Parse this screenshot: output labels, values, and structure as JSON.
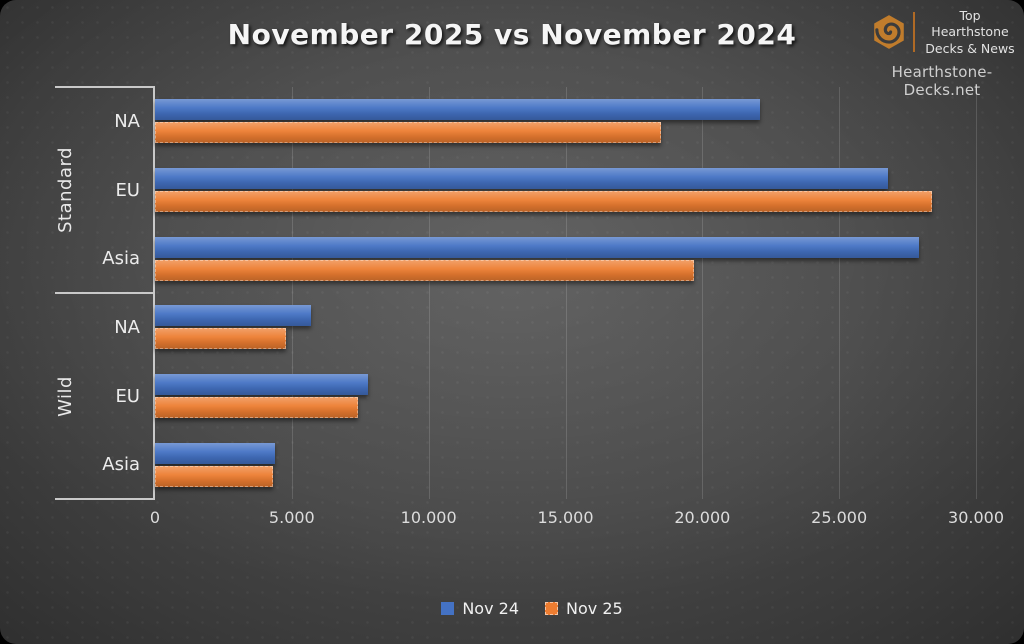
{
  "logo": {
    "icon": "hearthstone-hexagon-spiral-icon",
    "line1": "Top Hearthstone",
    "line2": "Decks & News",
    "site": "Hearthstone-Decks.net"
  },
  "chart_data": {
    "type": "bar",
    "orientation": "horizontal",
    "title": "November 2025 vs November 2024",
    "xlabel": "",
    "ylabel": "",
    "xlim": [
      0,
      30000
    ],
    "grid": "vertical",
    "legend_position": "bottom",
    "colors": {
      "nov24_blue": "#4472C4",
      "nov25_orange": "#ED7D31",
      "axis_line": "#C9C9C9",
      "background": "#474747",
      "title_text": "#F5F5F5"
    },
    "x_ticks": [
      {
        "value": 0,
        "label": "0"
      },
      {
        "value": 5000,
        "label": "5.000"
      },
      {
        "value": 10000,
        "label": "10.000"
      },
      {
        "value": 15000,
        "label": "15.000"
      },
      {
        "value": 20000,
        "label": "20.000"
      },
      {
        "value": 25000,
        "label": "25.000"
      },
      {
        "value": 30000,
        "label": "30.000"
      }
    ],
    "groups": [
      {
        "label": "Standard",
        "categories": [
          "NA",
          "EU",
          "Asia"
        ]
      },
      {
        "label": "Wild",
        "categories": [
          "NA",
          "EU",
          "Asia"
        ]
      }
    ],
    "categories": [
      "Standard NA",
      "Standard EU",
      "Standard Asia",
      "Wild NA",
      "Wild EU",
      "Wild Asia"
    ],
    "series": [
      {
        "name": "Nov 24",
        "color": "#4472C4",
        "values": [
          22100,
          26800,
          27900,
          5700,
          7800,
          4400
        ]
      },
      {
        "name": "Nov 25",
        "color": "#ED7D31",
        "values": [
          18500,
          28400,
          19700,
          4800,
          7400,
          4300
        ]
      }
    ]
  }
}
